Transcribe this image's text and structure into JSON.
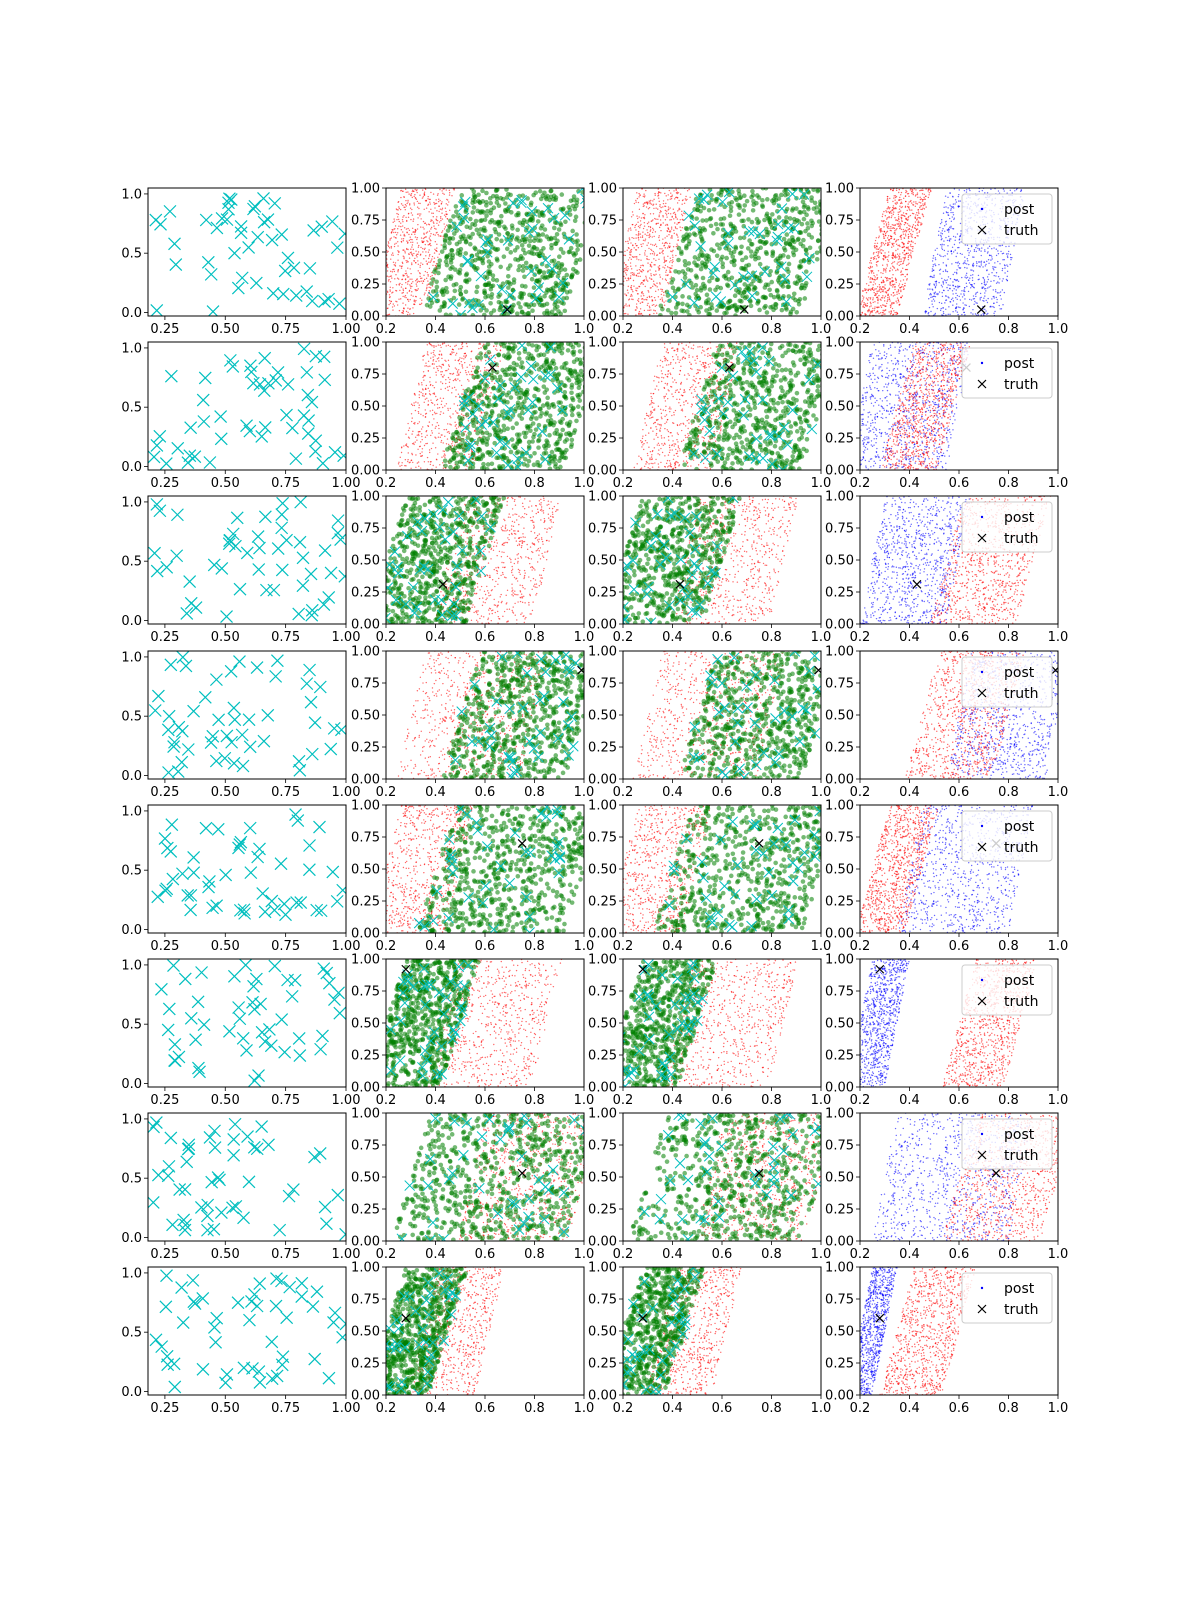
{
  "figure": {
    "rows": 8,
    "cols": 4,
    "legend_labels": {
      "post": "post",
      "truth": "truth"
    },
    "colors": {
      "cyan": "#00bfbf",
      "red": "#ff0000",
      "green": "#008000",
      "blue": "#0000ff",
      "truth": "#000000"
    }
  },
  "chart_data": [
    {
      "type": "scatter",
      "grid": false,
      "xlim_first": [
        0.18,
        1.0
      ],
      "ylim_first": [
        -0.03,
        1.05
      ],
      "xlim_other": [
        0.2,
        1.0
      ],
      "ylim_other": [
        0.0,
        1.0
      ],
      "x_ticks_first": [
        "0.25",
        "0.50",
        "0.75",
        "1.00"
      ],
      "y_ticks_first": [
        "0.0",
        "0.5",
        "1.0"
      ],
      "x_ticks_other": [
        "0.2",
        "0.4",
        "0.6",
        "0.8",
        "1.0"
      ],
      "y_ticks_other": [
        "0.00",
        "0.25",
        "0.50",
        "0.75",
        "1.00"
      ],
      "legend_position": "top-right",
      "rows": [
        {
          "truth": [
            0.69,
            0.05
          ],
          "red_band": [
            0.2,
            0.42
          ],
          "green_band": [
            0.42,
            1.0
          ],
          "blue_band": [
            0.5,
            0.82
          ],
          "last_red_band": [
            0.25,
            0.42
          ]
        },
        {
          "truth": [
            0.63,
            0.8
          ],
          "red_band": [
            0.3,
            0.62
          ],
          "green_band": [
            0.5,
            1.0
          ],
          "blue_band": [
            0.2,
            0.6
          ],
          "last_red_band": [
            0.35,
            0.58
          ]
        },
        {
          "truth": [
            0.43,
            0.31
          ],
          "red_band": [
            0.45,
            0.85
          ],
          "green_band": [
            0.2,
            0.6
          ],
          "blue_band": [
            0.25,
            0.6
          ],
          "last_red_band": [
            0.55,
            0.9
          ]
        },
        {
          "truth": [
            0.99,
            0.85
          ],
          "red_band": [
            0.3,
            0.8
          ],
          "green_band": [
            0.5,
            1.0
          ],
          "blue_band": [
            0.6,
            1.0
          ],
          "last_red_band": [
            0.45,
            0.8
          ]
        },
        {
          "truth": [
            0.75,
            0.7
          ],
          "red_band": [
            0.2,
            0.5
          ],
          "green_band": [
            0.4,
            1.0
          ],
          "blue_band": [
            0.4,
            0.85
          ],
          "last_red_band": [
            0.25,
            0.45
          ]
        },
        {
          "truth": [
            0.28,
            0.92
          ],
          "red_band": [
            0.42,
            0.85
          ],
          "green_band": [
            0.2,
            0.5
          ],
          "blue_band": [
            0.2,
            0.35
          ],
          "last_red_band": [
            0.6,
            0.85
          ]
        },
        {
          "truth": [
            0.75,
            0.53
          ],
          "red_band": [
            0.55,
            1.0
          ],
          "green_band": [
            0.3,
            1.0
          ],
          "blue_band": [
            0.3,
            0.85
          ],
          "last_red_band": [
            0.6,
            1.0
          ]
        },
        {
          "truth": [
            0.28,
            0.6
          ],
          "red_band": [
            0.35,
            0.62
          ],
          "green_band": [
            0.2,
            0.45
          ],
          "blue_band": [
            0.2,
            0.3
          ],
          "last_red_band": [
            0.35,
            0.6
          ]
        }
      ]
    }
  ]
}
